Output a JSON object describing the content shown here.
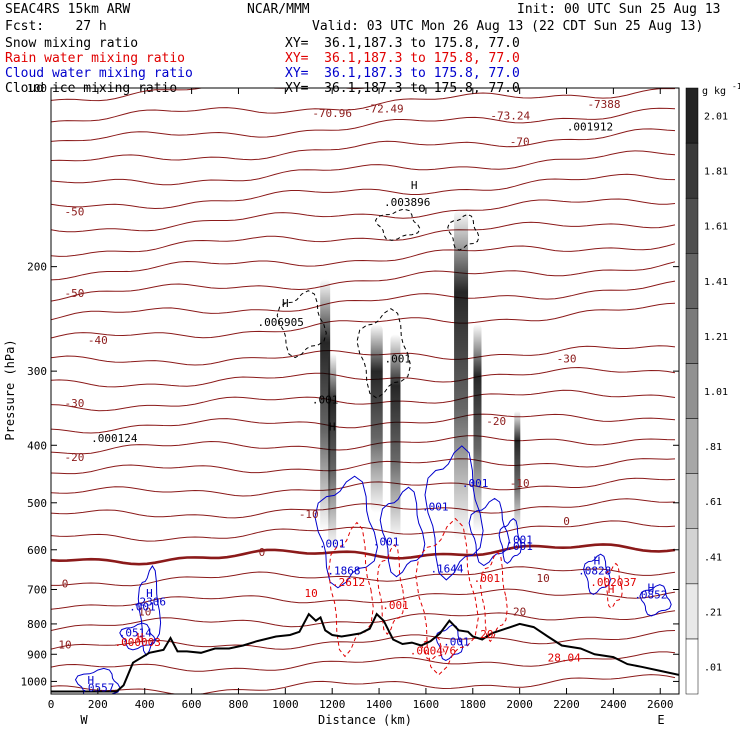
{
  "header": {
    "model": "SEAC4RS 15km ARW",
    "institution": "NCAR/MMM",
    "init": "Init: 00 UTC Sun 25 Aug 13",
    "fcst": "Fcst:    27 h",
    "valid": "Valid: 03 UTC Mon 26 Aug 13 (22 CDT Sun 25 Aug 13)"
  },
  "fields": [
    {
      "label": "Snow mixing ratio",
      "xy": "XY=  36.1,187.3 to 175.8, 77.0",
      "color": "#000000"
    },
    {
      "label": "Rain water mixing ratio",
      "xy": "XY=  36.1,187.3 to 175.8, 77.0",
      "color": "#e00000"
    },
    {
      "label": "Cloud water mixing ratio",
      "xy": "XY=  36.1,187.3 to 175.8, 77.0",
      "color": "#0000cc"
    },
    {
      "label": "Cloud ice mixing ratio",
      "xy": "XY=  36.1,187.3 to 175.8, 77.0",
      "color": "#000000"
    }
  ],
  "chart_data": {
    "type": "cross-section",
    "xlabel": "Distance (km)",
    "ylabel": "Pressure (hPa)",
    "xlim": [
      0,
      2680
    ],
    "ylim": [
      1050,
      100
    ],
    "y_scale": "log",
    "xticks": [
      0,
      200,
      400,
      600,
      800,
      1000,
      1200,
      1400,
      1600,
      1800,
      2000,
      2200,
      2400,
      2600
    ],
    "xtick_labels": [
      "0",
      "200",
      "400",
      "600",
      "800",
      "1000",
      "1200",
      "1400",
      "1600",
      "1800",
      "2000",
      "2200",
      "2400",
      "2600"
    ],
    "yticks": [
      100,
      200,
      300,
      400,
      500,
      600,
      700,
      800,
      900,
      1000
    ],
    "ytick_labels": [
      "100",
      "200",
      "300",
      "400",
      "500",
      "600",
      "700",
      "800",
      "900",
      "1000"
    ],
    "x_end_labels": {
      "left": "W",
      "right": "E"
    },
    "colorbar": {
      "unit": "g kg",
      "unit_exponent": "-1",
      "levels": [
        ".01",
        ".21",
        ".41",
        ".61",
        ".81",
        "1.01",
        "1.21",
        "1.41",
        "1.61",
        "1.81",
        "2.01"
      ]
    },
    "temperature_isotherms": [
      {
        "label": "-70",
        "x": 2000,
        "p": 125
      },
      {
        "label": "-50",
        "x": 100,
        "p": 164
      },
      {
        "label": "-50",
        "x": 100,
        "p": 225
      },
      {
        "label": "-40",
        "x": 200,
        "p": 270
      },
      {
        "label": "-30",
        "x": 100,
        "p": 345
      },
      {
        "label": "-30",
        "x": 2200,
        "p": 290
      },
      {
        "label": "-20",
        "x": 100,
        "p": 425
      },
      {
        "label": "-20",
        "x": 1900,
        "p": 370
      },
      {
        "label": "-10",
        "x": 1100,
        "p": 530
      },
      {
        "label": "-10",
        "x": 2000,
        "p": 470
      },
      {
        "label": "0",
        "x": 900,
        "p": 615
      },
      {
        "label": "0",
        "x": 2200,
        "p": 545
      },
      {
        "label": "0",
        "x": 60,
        "p": 695
      },
      {
        "label": "10",
        "x": 400,
        "p": 775
      },
      {
        "label": "10",
        "x": 2100,
        "p": 680
      },
      {
        "label": "10",
        "x": 60,
        "p": 880
      },
      {
        "label": "20",
        "x": 2000,
        "p": 775
      }
    ],
    "temperature_values": [
      {
        "label": "-70.96",
        "x": 1200,
        "p": 112
      },
      {
        "label": "-72.49",
        "x": 1420,
        "p": 110
      },
      {
        "label": "-73.24",
        "x": 1960,
        "p": 113
      },
      {
        "label": "-7388",
        "x": 2360,
        "p": 108
      }
    ],
    "maxima_labels": [
      {
        "label": "H",
        "x": 1550,
        "p": 148,
        "color": "#000000"
      },
      {
        "label": ".003896",
        "x": 1520,
        "p": 158,
        "color": "#000000"
      },
      {
        "label": ".001912",
        "x": 2300,
        "p": 118,
        "color": "#000000"
      },
      {
        "label": "H",
        "x": 1000,
        "p": 234,
        "color": "#000000"
      },
      {
        "label": ".006905",
        "x": 980,
        "p": 252,
        "color": "#000000"
      },
      {
        "label": ".001",
        "x": 1480,
        "p": 290,
        "color": "#000000"
      },
      {
        "label": ".001",
        "x": 1170,
        "p": 340,
        "color": "#000000"
      },
      {
        "label": "H",
        "x": 1200,
        "p": 378,
        "color": "#000000"
      },
      {
        "label": ".000124",
        "x": 270,
        "p": 395,
        "color": "#000000"
      },
      {
        "label": ".001",
        "x": 1810,
        "p": 470,
        "color": "#0000cc"
      },
      {
        "label": ".001",
        "x": 1640,
        "p": 515,
        "color": "#0000cc"
      },
      {
        "label": ".001",
        "x": 1200,
        "p": 595,
        "color": "#0000cc"
      },
      {
        "label": ".001",
        "x": 1430,
        "p": 590,
        "color": "#0000cc"
      },
      {
        "label": ".001",
        "x": 2000,
        "p": 600,
        "color": "#0000cc"
      },
      {
        "label": ".001",
        "x": 2000,
        "p": 585,
        "color": "#0000cc"
      },
      {
        "label": ".1868",
        "x": 1250,
        "p": 660,
        "color": "#0000cc"
      },
      {
        "label": ".1644",
        "x": 1690,
        "p": 655,
        "color": "#0000cc"
      },
      {
        "label": "H",
        "x": 2330,
        "p": 635,
        "color": "#0000cc"
      },
      {
        "label": ".0828",
        "x": 2320,
        "p": 660,
        "color": "#0000cc"
      },
      {
        "label": "H",
        "x": 420,
        "p": 720,
        "color": "#0000cc"
      },
      {
        "label": ".2306",
        "x": 420,
        "p": 745,
        "color": "#0000cc"
      },
      {
        "label": "H",
        "x": 2560,
        "p": 705,
        "color": "#0000cc"
      },
      {
        "label": ".0852",
        "x": 2560,
        "p": 725,
        "color": "#0000cc"
      },
      {
        "label": ".001",
        "x": 390,
        "p": 760,
        "color": "#0000cc"
      },
      {
        "label": ".0514",
        "x": 360,
        "p": 840,
        "color": "#0000cc"
      },
      {
        "label": ".001",
        "x": 1730,
        "p": 870,
        "color": "#0000cc"
      },
      {
        "label": ".001",
        "x": 1860,
        "p": 680,
        "color": "#e00000"
      },
      {
        "label": ".001",
        "x": 1470,
        "p": 755,
        "color": "#e00000"
      },
      {
        "label": "H",
        "x": 2390,
        "p": 710,
        "color": "#e00000"
      },
      {
        "label": ".002037",
        "x": 2400,
        "p": 690,
        "color": "#e00000"
      },
      {
        "label": ".2612",
        "x": 1270,
        "p": 690,
        "color": "#e00000"
      },
      {
        "label": "H",
        "x": 380,
        "p": 855,
        "color": "#e00000"
      },
      {
        "label": ".000003",
        "x": 370,
        "p": 872,
        "color": "#e00000"
      },
      {
        "label": ".000476",
        "x": 1630,
        "p": 900,
        "color": "#e00000"
      },
      {
        "label": "28.04",
        "x": 2190,
        "p": 925,
        "color": "#e00000"
      },
      {
        "label": "20",
        "x": 1860,
        "p": 845,
        "color": "#e00000"
      },
      {
        "label": "10",
        "x": 1110,
        "p": 720,
        "color": "#e00000"
      },
      {
        "label": "H",
        "x": 170,
        "p": 1010,
        "color": "#0000cc"
      },
      {
        "label": ".0557",
        "x": 200,
        "p": 1040,
        "color": "#0000cc"
      }
    ],
    "terrain": [
      [
        0,
        1040
      ],
      [
        280,
        1040
      ],
      [
        310,
        1015
      ],
      [
        350,
        930
      ],
      [
        420,
        895
      ],
      [
        480,
        885
      ],
      [
        510,
        845
      ],
      [
        540,
        890
      ],
      [
        580,
        890
      ],
      [
        640,
        895
      ],
      [
        700,
        880
      ],
      [
        760,
        880
      ],
      [
        820,
        870
      ],
      [
        880,
        855
      ],
      [
        960,
        840
      ],
      [
        1020,
        835
      ],
      [
        1060,
        825
      ],
      [
        1100,
        770
      ],
      [
        1130,
        790
      ],
      [
        1150,
        780
      ],
      [
        1170,
        820
      ],
      [
        1200,
        835
      ],
      [
        1240,
        840
      ],
      [
        1280,
        835
      ],
      [
        1320,
        830
      ],
      [
        1360,
        815
      ],
      [
        1390,
        770
      ],
      [
        1420,
        790
      ],
      [
        1460,
        850
      ],
      [
        1500,
        865
      ],
      [
        1540,
        860
      ],
      [
        1580,
        870
      ],
      [
        1620,
        855
      ],
      [
        1660,
        830
      ],
      [
        1700,
        790
      ],
      [
        1740,
        820
      ],
      [
        1780,
        825
      ],
      [
        1800,
        840
      ],
      [
        1840,
        850
      ],
      [
        1880,
        830
      ],
      [
        1940,
        815
      ],
      [
        2000,
        800
      ],
      [
        2060,
        810
      ],
      [
        2120,
        840
      ],
      [
        2180,
        870
      ],
      [
        2260,
        880
      ],
      [
        2320,
        900
      ],
      [
        2400,
        910
      ],
      [
        2460,
        935
      ],
      [
        2520,
        945
      ],
      [
        2600,
        960
      ],
      [
        2680,
        975
      ]
    ]
  }
}
